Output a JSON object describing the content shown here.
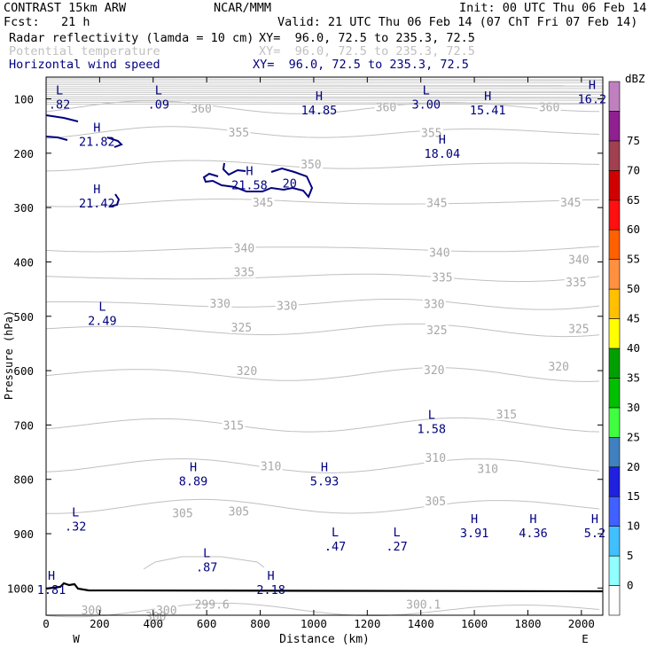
{
  "header": {
    "title": "CONTRAST 15km ARW",
    "org": "NCAR/MMM",
    "init": "Init: 00 UTC Thu 06 Feb 14",
    "fcst": "Fcst:   21 h",
    "valid": "Valid: 21 UTC Thu 06 Feb 14 (07 ChT Fri 07 Feb 14)",
    "fields": [
      {
        "label": "Radar reflectivity (lamda = 10 cm)",
        "xy": "XY=  96.0, 72.5 to 235.3, 72.5",
        "color": "#000000"
      },
      {
        "label": "Potential temperature",
        "xy": "XY=  96.0, 72.5 to 235.3, 72.5",
        "color": "#c0c0c0"
      },
      {
        "label": "Horizontal wind speed",
        "xy": "XY=  96.0, 72.5 to 235.3, 72.5",
        "color": "#000080"
      }
    ]
  },
  "chart_data": {
    "type": "cross-section",
    "xlabel": "Distance (km)",
    "ylabel": "Pressure (hPa)",
    "xlim": [
      0,
      2080
    ],
    "ylim": [
      1050,
      60
    ],
    "x_ticks": [
      0,
      200,
      400,
      600,
      800,
      1000,
      1200,
      1400,
      1600,
      1800,
      2000
    ],
    "y_ticks": [
      100,
      200,
      300,
      400,
      500,
      600,
      700,
      800,
      900,
      1000
    ],
    "x_end_labels": {
      "left": "W",
      "right": "E"
    },
    "colorbar": {
      "unit": "dBZ",
      "levels": [
        0,
        5,
        10,
        15,
        20,
        25,
        30,
        35,
        40,
        45,
        50,
        55,
        60,
        65,
        70,
        75
      ],
      "colors": [
        "#ffffff",
        "#90ffff",
        "#40c0ff",
        "#4060ff",
        "#2020e0",
        "#4080c0",
        "#40ff40",
        "#00c000",
        "#00a000",
        "#ffff00",
        "#ffc000",
        "#ff9040",
        "#ff6000",
        "#ff1010",
        "#d00000",
        "#a04050",
        "#902090",
        "#c080c0"
      ]
    },
    "theta_isentropes": [
      {
        "level": 300,
        "p": 1040,
        "labels": [
          [
            170,
            1040
          ],
          [
            450,
            1040
          ]
        ]
      },
      {
        "level": 305,
        "p": 850,
        "labels": [
          [
            510,
            862
          ],
          [
            720,
            858
          ],
          [
            1455,
            840
          ]
        ]
      },
      {
        "level": 310,
        "p": 775,
        "labels": [
          [
            840,
            775
          ],
          [
            1455,
            760
          ],
          [
            1650,
            780
          ]
        ]
      },
      {
        "level": 315,
        "p": 700,
        "labels": [
          [
            700,
            700
          ],
          [
            1720,
            680
          ]
        ]
      },
      {
        "level": 320,
        "p": 607,
        "labels": [
          [
            750,
            600
          ],
          [
            1450,
            598
          ],
          [
            1915,
            592
          ]
        ]
      },
      {
        "level": 325,
        "p": 525,
        "labels": [
          [
            730,
            520
          ],
          [
            1460,
            525
          ],
          [
            1990,
            522
          ]
        ]
      },
      {
        "level": 330,
        "p": 477,
        "labels": [
          [
            650,
            476
          ],
          [
            900,
            480
          ],
          [
            1450,
            477
          ]
        ]
      },
      {
        "level": 335,
        "p": 428,
        "labels": [
          [
            740,
            418
          ],
          [
            1480,
            428
          ],
          [
            1980,
            437
          ]
        ]
      },
      {
        "level": 340,
        "p": 376,
        "labels": [
          [
            740,
            374
          ],
          [
            1470,
            382
          ],
          [
            1990,
            395
          ]
        ]
      },
      {
        "level": 345,
        "p": 290,
        "labels": [
          [
            810,
            290
          ],
          [
            1460,
            291
          ],
          [
            1960,
            290
          ]
        ]
      },
      {
        "level": 350,
        "p": 222,
        "labels": [
          [
            990,
            220
          ]
        ]
      },
      {
        "level": 355,
        "p": 162,
        "labels": [
          [
            720,
            161
          ],
          [
            1440,
            162
          ]
        ]
      },
      {
        "level": 360,
        "p": 116,
        "labels": [
          [
            580,
            117
          ],
          [
            1270,
            115
          ],
          [
            1880,
            115
          ]
        ]
      }
    ],
    "isentrope_annotations": [
      {
        "label": "299.6",
        "x": 620,
        "p": 1030
      },
      {
        "label": "300.1",
        "x": 1410,
        "p": 1030
      },
      {
        "label": "300",
        "x": 410,
        "p": 1052
      }
    ],
    "wind_extrema": [
      {
        "type": "H",
        "value": "21.82",
        "x": 190,
        "p": 160
      },
      {
        "type": "H",
        "value": "21.58",
        "x": 760,
        "p": 240
      },
      {
        "type": "H",
        "value": "21.42",
        "x": 190,
        "p": 274
      },
      {
        "type": "H",
        "value": "14.85",
        "x": 1020,
        "p": 102
      },
      {
        "type": "H",
        "value": "15.41",
        "x": 1650,
        "p": 102
      },
      {
        "type": "H",
        "value": "18.04",
        "x": 1480,
        "p": 182
      },
      {
        "type": "H",
        "value": "16.2",
        "x": 2040,
        "p": 82
      },
      {
        "type": "L",
        "value": ".82",
        "x": 50,
        "p": 92
      },
      {
        "type": "L",
        "value": ".09",
        "x": 420,
        "p": 92
      },
      {
        "type": "L",
        "value": "3.00",
        "x": 1420,
        "p": 92
      },
      {
        "type": "L",
        "value": "2.49",
        "x": 210,
        "p": 490
      },
      {
        "type": "L",
        "value": "1.58",
        "x": 1440,
        "p": 689
      },
      {
        "type": "H",
        "value": "8.89",
        "x": 550,
        "p": 785
      },
      {
        "type": "H",
        "value": "5.93",
        "x": 1040,
        "p": 785
      },
      {
        "type": "L",
        "value": ".32",
        "x": 110,
        "p": 868
      },
      {
        "type": "H",
        "value": "3.91",
        "x": 1600,
        "p": 880
      },
      {
        "type": "H",
        "value": "4.36",
        "x": 1820,
        "p": 880
      },
      {
        "type": "H",
        "value": "5.2",
        "x": 2050,
        "p": 880
      },
      {
        "type": "L",
        "value": ".47",
        "x": 1080,
        "p": 905
      },
      {
        "type": "L",
        "value": ".27",
        "x": 1310,
        "p": 905
      },
      {
        "type": "L",
        "value": ".87",
        "x": 600,
        "p": 943
      },
      {
        "type": "H",
        "value": "2.18",
        "x": 840,
        "p": 985
      },
      {
        "type": "H",
        "value": "1.81",
        "x": 20,
        "p": 985
      }
    ],
    "wind_contour_labels": [
      {
        "label": "20",
        "x": 910,
        "p": 255
      }
    ]
  }
}
